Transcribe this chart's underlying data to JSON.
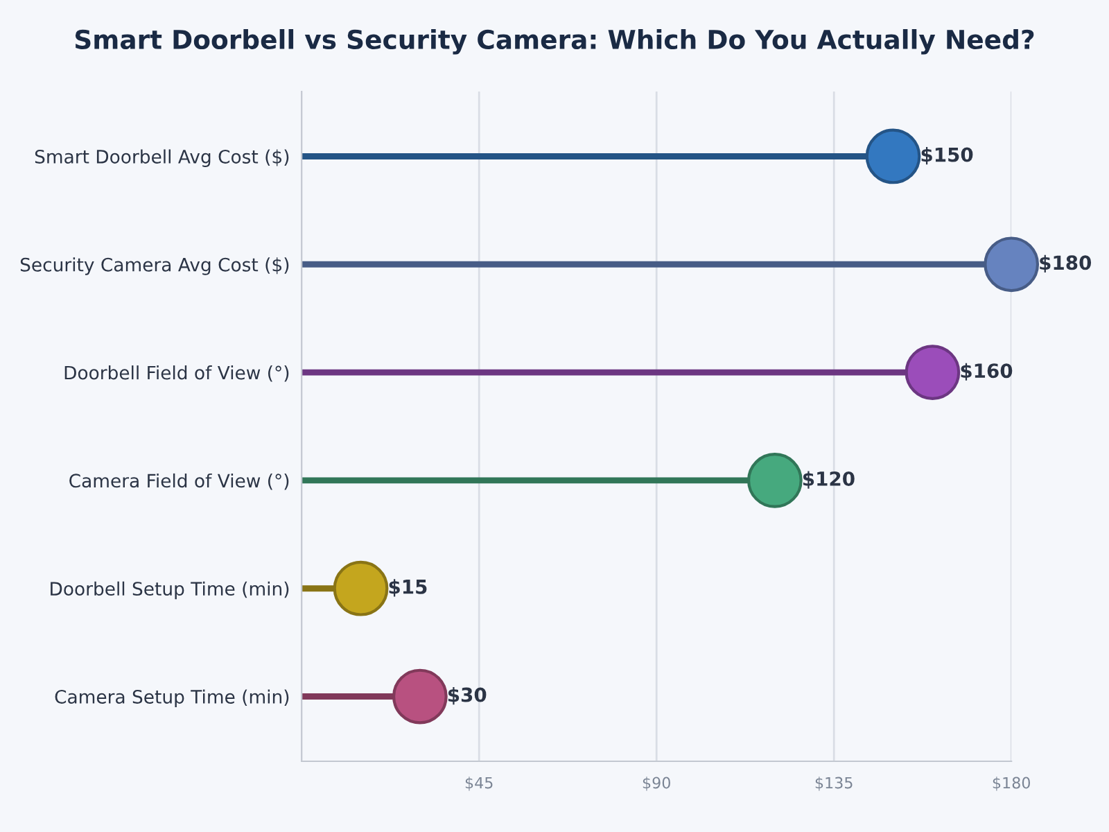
{
  "chart_data": {
    "type": "lollipop",
    "orientation": "horizontal",
    "title": "Smart Doorbell vs Security Camera: Which Do You Actually Need?",
    "categories": [
      "Smart Doorbell Avg Cost ($)",
      "Security Camera Avg Cost ($)",
      "Doorbell Field of View (°)",
      "Camera Field of View (°)",
      "Doorbell Setup Time (min)",
      "Camera Setup Time (min)"
    ],
    "values": [
      150,
      180,
      160,
      120,
      15,
      30
    ],
    "value_labels": [
      "$150",
      "$180",
      "$160",
      "$120",
      "$15",
      "$30"
    ],
    "colors": [
      "#3378c0",
      "#6683bf",
      "#9b4dba",
      "#46a97e",
      "#c4a61e",
      "#b85180"
    ],
    "xlim": [
      0,
      180
    ],
    "xticks": [
      {
        "value": 45,
        "label": "$45"
      },
      {
        "value": 90,
        "label": "$90"
      },
      {
        "value": 135,
        "label": "$135"
      },
      {
        "value": 180,
        "label": "$180"
      }
    ],
    "grid": "x",
    "marker": "circle"
  }
}
